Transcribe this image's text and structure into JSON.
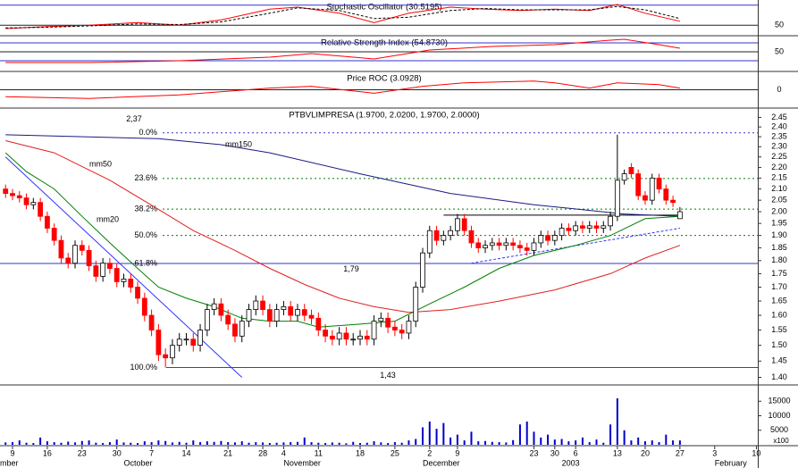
{
  "chart_data": [
    {
      "type": "line",
      "title": "Stochastic Oscillator (30.5195)",
      "ylim": [
        37,
        85
      ],
      "yticks": [
        50
      ],
      "grid": true,
      "levels": [
        80
      ],
      "level_color": "#3333cc",
      "series": [
        {
          "color": "#ff0000",
          "dashed": false,
          "x": [
            0,
            6,
            12,
            19,
            25,
            31,
            38,
            42,
            48,
            53,
            58,
            64,
            69,
            74,
            79,
            84,
            88,
            92,
            97
          ],
          "values": [
            45,
            48,
            50,
            54,
            50,
            58,
            74,
            77,
            68,
            54,
            68,
            77,
            74,
            72,
            74,
            72,
            81,
            68,
            56
          ]
        },
        {
          "color": "#000000",
          "dashed": true,
          "x": [
            0,
            6,
            12,
            19,
            25,
            31,
            38,
            42,
            48,
            53,
            58,
            64,
            69,
            74,
            79,
            84,
            88,
            92,
            97
          ],
          "values": [
            46,
            47,
            49,
            52,
            51,
            55,
            68,
            76,
            72,
            60,
            62,
            72,
            75,
            73,
            73,
            73,
            78,
            73,
            60
          ]
        }
      ]
    },
    {
      "type": "line",
      "title": "Relative Strength Index (54.8730)",
      "ylim": [
        10,
        82
      ],
      "yticks": [
        50
      ],
      "grid": true,
      "levels": [
        70,
        30
      ],
      "level_color": "#3333cc",
      "series": [
        {
          "color": "#ff0000",
          "dashed": false,
          "x": [
            0,
            12,
            25,
            38,
            44,
            53,
            61,
            70,
            79,
            87,
            89,
            94,
            97
          ],
          "values": [
            26,
            26,
            30,
            38,
            46,
            34,
            54,
            62,
            66,
            76,
            78,
            66,
            58
          ]
        }
      ]
    },
    {
      "type": "line",
      "title": "Price ROC (3.0928)",
      "ylim": [
        -19,
        19
      ],
      "yticks": [
        0
      ],
      "grid": true,
      "series": [
        {
          "color": "#ff0000",
          "dashed": false,
          "x": [
            0,
            12,
            25,
            38,
            44,
            53,
            60,
            66,
            76,
            79,
            84,
            88,
            94,
            97
          ],
          "values": [
            -8,
            -10,
            -6,
            2,
            4,
            -4,
            4,
            8,
            10,
            8,
            2,
            8,
            6,
            2
          ]
        }
      ]
    },
    {
      "type": "candlestick",
      "title": "PTBVLIMPRESA (1.9700, 2.0200, 1.9700, 2.0000)",
      "log_scale": true,
      "ylim": [
        1.38,
        2.49
      ],
      "xlim": [
        -0.8,
        108.2
      ],
      "yticks": [
        2.45,
        {
          "value": 2.4,
          "label": "2.40"
        },
        2.35,
        {
          "value": 2.3,
          "label": "2.30"
        },
        2.25,
        {
          "value": 2.2,
          "label": "2.20"
        },
        2.15,
        {
          "value": 2.1,
          "label": "2.10"
        },
        2.05,
        {
          "value": 2,
          "label": "2.00"
        },
        1.95,
        {
          "value": 1.9,
          "label": "1.90"
        },
        1.85,
        {
          "value": 1.8,
          "label": "1.80"
        },
        1.75,
        {
          "value": 1.7,
          "label": "1.70"
        },
        1.65,
        {
          "value": 1.6,
          "label": "1.60"
        },
        1.55,
        {
          "value": 1.5,
          "label": "1.50"
        },
        1.45,
        {
          "value": 1.4,
          "label": "1.40"
        }
      ],
      "up_color": "#ffffff",
      "down_color": "#ff0000",
      "open": [
        2.1,
        2.08,
        2.07,
        2.06,
        2.03,
        2.04,
        1.98,
        1.93,
        1.88,
        1.81,
        1.79,
        1.86,
        1.84,
        1.78,
        1.74,
        1.79,
        1.77,
        1.72,
        1.73,
        1.7,
        1.66,
        1.6,
        1.55,
        1.47,
        1.46,
        1.5,
        1.52,
        1.52,
        1.5,
        1.55,
        1.62,
        1.64,
        1.6,
        1.57,
        1.53,
        1.58,
        1.62,
        1.65,
        1.62,
        1.58,
        1.62,
        1.63,
        1.6,
        1.62,
        1.6,
        1.59,
        1.55,
        1.53,
        1.52,
        1.54,
        1.52,
        1.52,
        1.53,
        1.52,
        1.58,
        1.59,
        1.56,
        1.55,
        1.54,
        1.58,
        1.7,
        1.83,
        1.92,
        1.88,
        1.9,
        1.92,
        1.97,
        1.92,
        1.87,
        1.85,
        1.86,
        1.87,
        1.86,
        1.87,
        1.86,
        1.85,
        1.84,
        1.87,
        1.9,
        1.88,
        1.9,
        1.93,
        1.92,
        1.94,
        1.93,
        1.94,
        1.93,
        1.94,
        1.98,
        2.14,
        2.2,
        2.17,
        2.07,
        2.05,
        2.15,
        2.1,
        2.05,
        1.97
      ],
      "high": [
        2.12,
        2.1,
        2.09,
        2.08,
        2.06,
        2.06,
        2.0,
        1.95,
        1.9,
        1.83,
        1.88,
        1.88,
        1.86,
        1.8,
        1.81,
        1.81,
        1.79,
        1.75,
        1.75,
        1.72,
        1.68,
        1.62,
        1.57,
        1.49,
        1.52,
        1.54,
        1.54,
        1.54,
        1.57,
        1.64,
        1.66,
        1.66,
        1.62,
        1.59,
        1.6,
        1.64,
        1.67,
        1.67,
        1.64,
        1.64,
        1.65,
        1.65,
        1.64,
        1.64,
        1.62,
        1.61,
        1.57,
        1.55,
        1.56,
        1.56,
        1.54,
        1.55,
        1.55,
        1.6,
        1.61,
        1.61,
        1.58,
        1.57,
        1.6,
        1.72,
        1.85,
        1.94,
        1.94,
        1.92,
        1.94,
        1.99,
        1.99,
        1.94,
        1.89,
        1.88,
        1.89,
        1.89,
        1.89,
        1.89,
        1.88,
        1.87,
        1.89,
        1.92,
        1.92,
        1.92,
        1.95,
        1.95,
        1.96,
        1.96,
        1.96,
        1.96,
        1.96,
        2.0,
        2.36,
        2.19,
        2.22,
        2.19,
        2.09,
        2.17,
        2.17,
        2.12,
        2.07,
        2.02
      ],
      "low": [
        2.06,
        2.05,
        2.04,
        2.01,
        2.01,
        1.96,
        1.91,
        1.86,
        1.79,
        1.77,
        1.77,
        1.82,
        1.76,
        1.72,
        1.72,
        1.75,
        1.7,
        1.7,
        1.68,
        1.64,
        1.58,
        1.53,
        1.45,
        1.43,
        1.44,
        1.48,
        1.5,
        1.48,
        1.48,
        1.53,
        1.6,
        1.58,
        1.55,
        1.51,
        1.51,
        1.56,
        1.6,
        1.6,
        1.56,
        1.56,
        1.6,
        1.58,
        1.58,
        1.58,
        1.57,
        1.53,
        1.51,
        1.5,
        1.5,
        1.5,
        1.5,
        1.5,
        1.5,
        1.5,
        1.56,
        1.54,
        1.53,
        1.52,
        1.52,
        1.56,
        1.68,
        1.81,
        1.86,
        1.86,
        1.88,
        1.9,
        1.9,
        1.85,
        1.83,
        1.83,
        1.84,
        1.84,
        1.84,
        1.84,
        1.83,
        1.82,
        1.82,
        1.85,
        1.86,
        1.86,
        1.88,
        1.9,
        1.9,
        1.91,
        1.91,
        1.91,
        1.91,
        1.92,
        1.96,
        2.12,
        2.15,
        2.05,
        2.03,
        2.03,
        2.08,
        2.03,
        2.02,
        1.97
      ],
      "close": [
        2.08,
        2.07,
        2.06,
        2.03,
        2.04,
        1.98,
        1.93,
        1.88,
        1.81,
        1.79,
        1.86,
        1.84,
        1.78,
        1.74,
        1.79,
        1.77,
        1.72,
        1.73,
        1.7,
        1.66,
        1.6,
        1.55,
        1.47,
        1.46,
        1.5,
        1.52,
        1.52,
        1.5,
        1.55,
        1.62,
        1.64,
        1.6,
        1.57,
        1.53,
        1.58,
        1.62,
        1.65,
        1.62,
        1.58,
        1.62,
        1.63,
        1.6,
        1.62,
        1.6,
        1.59,
        1.55,
        1.53,
        1.52,
        1.54,
        1.52,
        1.52,
        1.53,
        1.52,
        1.58,
        1.59,
        1.56,
        1.55,
        1.54,
        1.58,
        1.7,
        1.83,
        1.92,
        1.88,
        1.9,
        1.92,
        1.97,
        1.92,
        1.87,
        1.85,
        1.86,
        1.87,
        1.86,
        1.87,
        1.86,
        1.85,
        1.84,
        1.87,
        1.9,
        1.88,
        1.9,
        1.93,
        1.92,
        1.94,
        1.93,
        1.94,
        1.93,
        1.94,
        1.98,
        2.14,
        2.17,
        2.17,
        2.07,
        2.05,
        2.15,
        2.1,
        2.05,
        2.04,
        2.0
      ],
      "series": [
        {
          "name": "mm150",
          "color": "#1a1a80",
          "x": [
            0,
            22,
            31,
            38,
            51,
            64,
            76,
            89,
            97
          ],
          "values": [
            2.36,
            2.34,
            2.31,
            2.27,
            2.17,
            2.08,
            2.03,
            1.99,
            1.98
          ]
        },
        {
          "name": "mm50",
          "color": "#e02020",
          "x": [
            0,
            7,
            15,
            22,
            27,
            33,
            38,
            43,
            48,
            53,
            58,
            64,
            71,
            79,
            87,
            92,
            97
          ],
          "values": [
            2.33,
            2.27,
            2.14,
            2.01,
            1.92,
            1.84,
            1.77,
            1.71,
            1.66,
            1.63,
            1.61,
            1.62,
            1.65,
            1.69,
            1.75,
            1.81,
            1.86
          ]
        },
        {
          "name": "mm20",
          "color": "#008000",
          "x": [
            0,
            3,
            7,
            11,
            15,
            19,
            22,
            26,
            30,
            34,
            38,
            42,
            45,
            51,
            56,
            61,
            66,
            71,
            76,
            82,
            87,
            92,
            97
          ],
          "values": [
            2.27,
            2.18,
            2.1,
            1.98,
            1.87,
            1.77,
            1.7,
            1.66,
            1.63,
            1.59,
            1.58,
            1.58,
            1.56,
            1.57,
            1.58,
            1.64,
            1.7,
            1.77,
            1.82,
            1.86,
            1.9,
            1.97,
            1.98
          ]
        }
      ],
      "fibonacci": [
        {
          "label": "0.0%",
          "value": 2.37,
          "color": "#3333cc",
          "dashed": true
        },
        {
          "label": "23.6%",
          "value": 2.148,
          "color": "#008000",
          "dashed": true
        },
        {
          "label": "38.2%",
          "value": 2.011,
          "color": "#008000",
          "dashed": true
        },
        {
          "label": "50.0%",
          "value": 1.9,
          "color": "#008000",
          "dashed": true
        },
        {
          "label": "61.8%",
          "value": 1.789,
          "color": "#3333cc",
          "dashed": false
        },
        {
          "label": "100.0%",
          "value": 1.43,
          "color": "#008000",
          "dashed": false
        }
      ],
      "trendlines": [
        {
          "color": "#3333ff",
          "dashed": false,
          "x": [
            0,
            34
          ],
          "values": [
            2.25,
            1.4
          ]
        },
        {
          "color": "#3333ff",
          "dashed": true,
          "x": [
            67,
            97
          ],
          "values": [
            1.79,
            1.93
          ]
        },
        {
          "color": "#000000",
          "dashed": false,
          "x": [
            63,
            97
          ],
          "values": [
            1.985,
            1.985
          ]
        }
      ],
      "annotations": [
        {
          "text": "2,37",
          "value": 2.37
        },
        {
          "text": "1,79",
          "value": 1.79
        },
        {
          "text": "1,43",
          "value": 1.43
        }
      ]
    },
    {
      "type": "bar",
      "color": "#0000cc",
      "ylim": [
        0,
        20000
      ],
      "yticks": [
        15000,
        10000,
        5000
      ],
      "y_unit": "x100",
      "values": [
        800,
        900,
        1500,
        700,
        600,
        2500,
        1200,
        900,
        700,
        1100,
        800,
        1300,
        1500,
        700,
        600,
        900,
        1800,
        800,
        700,
        600,
        1200,
        900,
        1500,
        1300,
        800,
        1000,
        700,
        1500,
        900,
        1200,
        1000,
        1300,
        900,
        800,
        1200,
        700,
        900,
        800,
        600,
        700,
        800,
        900,
        1000,
        2500,
        900,
        700,
        600,
        800,
        700,
        500,
        1000,
        600,
        700,
        1200,
        800,
        600,
        900,
        700,
        1500,
        2000,
        6000,
        8000,
        5500,
        7500,
        2500,
        3500,
        1500,
        4500,
        1200,
        1300,
        1000,
        900,
        800,
        1600,
        7000,
        8000,
        4500,
        2500,
        3500,
        1800,
        2000,
        1200,
        1500,
        2500,
        900,
        1800,
        700,
        7000,
        16000,
        5000,
        1500,
        2500,
        1200,
        1500,
        900,
        3500,
        1500,
        1500
      ],
      "xticks": [
        {
          "value": 1,
          "label": "9"
        },
        {
          "value": 6,
          "label": "16"
        },
        {
          "value": 11,
          "label": "23"
        },
        {
          "value": 16,
          "label": "30"
        },
        {
          "value": 21,
          "label": "7"
        },
        {
          "value": 26,
          "label": "14"
        },
        {
          "value": 32,
          "label": "21"
        },
        {
          "value": 37,
          "label": "28"
        },
        {
          "value": 40,
          "label": "4"
        },
        {
          "value": 45,
          "label": "11"
        },
        {
          "value": 51,
          "label": "18"
        },
        {
          "value": 56,
          "label": "25"
        },
        {
          "value": 61,
          "label": "2"
        },
        {
          "value": 65,
          "label": "9"
        },
        {
          "value": 76,
          "label": "23"
        },
        {
          "value": 79,
          "label": "30"
        },
        {
          "value": 82,
          "label": "6"
        },
        {
          "value": 88,
          "label": "13"
        },
        {
          "value": 92,
          "label": "20"
        },
        {
          "value": 97,
          "label": "27"
        },
        {
          "value": 102,
          "label": "3"
        },
        {
          "value": 108,
          "label": "10"
        }
      ],
      "month_labels": [
        {
          "value": -0.8,
          "label": "mber"
        },
        {
          "value": 17,
          "label": "October"
        },
        {
          "value": 40,
          "label": "November"
        },
        {
          "value": 60,
          "label": "December"
        },
        {
          "value": 80,
          "label": "2003"
        },
        {
          "value": 102,
          "label": "February"
        }
      ]
    }
  ]
}
